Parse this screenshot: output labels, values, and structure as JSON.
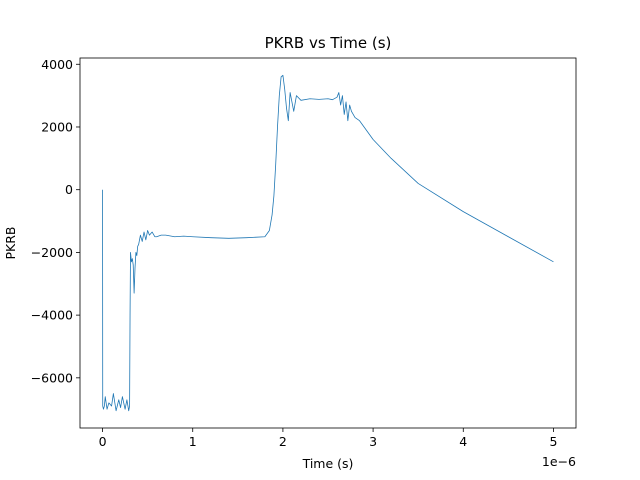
{
  "chart_data": {
    "type": "line",
    "title": "PKRB vs Time (s)",
    "xlabel": "Time (s)",
    "ylabel": "PKRB",
    "x_offset_label": "1e−6",
    "xlim": [
      -0.25,
      5.25
    ],
    "ylim": [
      -7600,
      4200
    ],
    "x_ticks": [
      0,
      1,
      2,
      3,
      4,
      5
    ],
    "x_tick_labels": [
      "0",
      "1",
      "2",
      "3",
      "4",
      "5"
    ],
    "y_ticks": [
      -6000,
      -4000,
      -2000,
      0,
      2000,
      4000
    ],
    "y_tick_labels": [
      "−6000",
      "−4000",
      "−2000",
      "0",
      "2000",
      "4000"
    ],
    "grid": false,
    "series": [
      {
        "color": "#1f77b4",
        "x": [
          0.0,
          0.002,
          0.01,
          0.02,
          0.03,
          0.05,
          0.07,
          0.1,
          0.12,
          0.15,
          0.18,
          0.2,
          0.22,
          0.25,
          0.27,
          0.29,
          0.3,
          0.305,
          0.31,
          0.32,
          0.33,
          0.34,
          0.35,
          0.36,
          0.37,
          0.38,
          0.39,
          0.4,
          0.42,
          0.44,
          0.46,
          0.48,
          0.5,
          0.52,
          0.55,
          0.58,
          0.6,
          0.65,
          0.7,
          0.8,
          0.9,
          1.0,
          1.2,
          1.4,
          1.6,
          1.8,
          1.85,
          1.88,
          1.9,
          1.92,
          1.94,
          1.96,
          1.98,
          2.0,
          2.02,
          2.04,
          2.06,
          2.08,
          2.1,
          2.12,
          2.15,
          2.2,
          2.3,
          2.4,
          2.5,
          2.55,
          2.6,
          2.62,
          2.64,
          2.66,
          2.68,
          2.7,
          2.72,
          2.74,
          2.76,
          2.8,
          2.85,
          2.9,
          3.0,
          3.2,
          3.5,
          4.0,
          4.5,
          5.0
        ],
        "y": [
          0,
          -6900,
          -7000,
          -6900,
          -6600,
          -7000,
          -6800,
          -6900,
          -6500,
          -7050,
          -6700,
          -6950,
          -6600,
          -7000,
          -6700,
          -7050,
          -6900,
          -4000,
          -2000,
          -2300,
          -2200,
          -2400,
          -3300,
          -2500,
          -2000,
          -2100,
          -1800,
          -1750,
          -1450,
          -1650,
          -1350,
          -1600,
          -1300,
          -1450,
          -1350,
          -1500,
          -1500,
          -1450,
          -1450,
          -1500,
          -1480,
          -1500,
          -1530,
          -1550,
          -1530,
          -1500,
          -1300,
          -800,
          -200,
          800,
          2000,
          3000,
          3600,
          3650,
          3200,
          2600,
          2200,
          3100,
          2800,
          2500,
          3000,
          2850,
          2900,
          2880,
          2900,
          2870,
          2950,
          3100,
          2700,
          3000,
          2400,
          2800,
          2200,
          2700,
          2500,
          2300,
          2200,
          2000,
          1600,
          1000,
          200,
          -700,
          -1500,
          -2300
        ]
      }
    ]
  }
}
